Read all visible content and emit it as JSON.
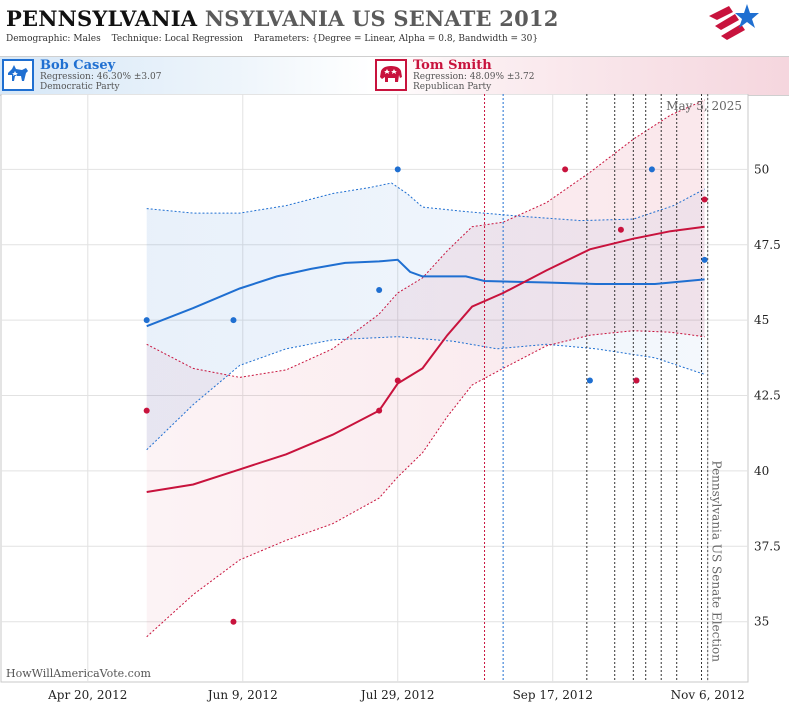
{
  "header": {
    "title_main": "PENNSYLVANIA",
    "title_sub": "NSYLVANIA US SENATE 2012",
    "demographic_label": "Demographic:",
    "demographic_value": "Males",
    "technique_label": "Technique:",
    "technique_value": "Local Regression",
    "parameters_label": "Parameters:",
    "parameters_value": "{Degree = Linear, Alpha = 0.8, Bandwidth = 30}"
  },
  "logo": {
    "icon": "star-flag-logo-icon",
    "colors": [
      "#c8133d",
      "#1f6fd1"
    ]
  },
  "candidates": {
    "dem": {
      "name": "Bob Casey",
      "regression": "Regression: 46.30% ±3.07",
      "party": "Democratic Party",
      "color": "#1f6fd1",
      "icon": "donkey-icon"
    },
    "rep": {
      "name": "Tom Smith",
      "regression": "Regression: 48.09% ±3.72",
      "party": "Republican Party",
      "color": "#c8133d",
      "icon": "elephant-icon"
    }
  },
  "chart_data": {
    "type": "scatter",
    "title": "",
    "xlabel": "",
    "ylabel": "",
    "x_tick_labels": [
      "Apr 20, 2012",
      "Jun 9, 2012",
      "Jul 29, 2012",
      "Sep 17, 2012",
      "Nov 6, 2012"
    ],
    "x_tick_dates": [
      "2012-04-20",
      "2012-06-09",
      "2012-07-29",
      "2012-09-17",
      "2012-11-06"
    ],
    "xlim": [
      "2012-03-23",
      "2012-11-19"
    ],
    "y_ticks": [
      35,
      37.5,
      40,
      42.5,
      45,
      47.5,
      50
    ],
    "ylim": [
      33,
      52.5
    ],
    "grid": true,
    "annotation_date": "May 5, 2025",
    "event_label": "Pennsylvania US Senate Election",
    "event_date": "2012-11-06",
    "poll_lines": [
      {
        "date": "2012-08-26",
        "color": "#c8133d"
      },
      {
        "date": "2012-09-01",
        "color": "#1f6fd1"
      },
      {
        "date": "2012-09-28",
        "color": "#333333"
      },
      {
        "date": "2012-10-07",
        "color": "#333333"
      },
      {
        "date": "2012-10-13",
        "color": "#333333"
      },
      {
        "date": "2012-10-17",
        "color": "#333333"
      },
      {
        "date": "2012-10-22",
        "color": "#333333"
      },
      {
        "date": "2012-10-27",
        "color": "#333333"
      },
      {
        "date": "2012-11-04",
        "color": "#333333"
      }
    ],
    "series": [
      {
        "party": "dem",
        "color": "#1f6fd1",
        "points": [
          [
            "2012-05-09",
            45
          ],
          [
            "2012-06-06",
            45
          ],
          [
            "2012-07-23",
            46
          ],
          [
            "2012-07-29",
            50
          ],
          [
            "2012-09-29",
            43
          ],
          [
            "2012-10-14",
            43
          ],
          [
            "2012-10-19",
            50
          ],
          [
            "2012-11-05",
            47
          ]
        ],
        "trend": [
          [
            "2012-05-09",
            44.8
          ],
          [
            "2012-05-24",
            45.4
          ],
          [
            "2012-06-08",
            46.05
          ],
          [
            "2012-06-20",
            46.45
          ],
          [
            "2012-07-01",
            46.7
          ],
          [
            "2012-07-12",
            46.9
          ],
          [
            "2012-07-23",
            46.95
          ],
          [
            "2012-07-29",
            47.0
          ],
          [
            "2012-08-02",
            46.6
          ],
          [
            "2012-08-06",
            46.45
          ],
          [
            "2012-08-20",
            46.45
          ],
          [
            "2012-08-26",
            46.3
          ],
          [
            "2012-09-15",
            46.25
          ],
          [
            "2012-10-01",
            46.2
          ],
          [
            "2012-10-20",
            46.2
          ],
          [
            "2012-11-05",
            46.35
          ]
        ],
        "upper": [
          [
            "2012-05-09",
            48.7
          ],
          [
            "2012-05-24",
            48.55
          ],
          [
            "2012-06-08",
            48.55
          ],
          [
            "2012-06-23",
            48.8
          ],
          [
            "2012-07-08",
            49.2
          ],
          [
            "2012-07-20",
            49.4
          ],
          [
            "2012-07-27",
            49.55
          ],
          [
            "2012-08-01",
            49.2
          ],
          [
            "2012-08-06",
            48.75
          ],
          [
            "2012-08-20",
            48.6
          ],
          [
            "2012-09-06",
            48.45
          ],
          [
            "2012-09-26",
            48.3
          ],
          [
            "2012-10-13",
            48.35
          ],
          [
            "2012-10-26",
            48.8
          ],
          [
            "2012-11-05",
            49.35
          ]
        ],
        "lower": [
          [
            "2012-05-09",
            40.7
          ],
          [
            "2012-05-24",
            42.2
          ],
          [
            "2012-06-08",
            43.5
          ],
          [
            "2012-06-23",
            44.05
          ],
          [
            "2012-07-08",
            44.35
          ],
          [
            "2012-07-29",
            44.45
          ],
          [
            "2012-08-16",
            44.3
          ],
          [
            "2012-08-30",
            44.05
          ],
          [
            "2012-09-15",
            44.2
          ],
          [
            "2012-10-01",
            44.05
          ],
          [
            "2012-10-20",
            43.75
          ],
          [
            "2012-11-05",
            43.2
          ]
        ]
      },
      {
        "party": "rep",
        "color": "#c8133d",
        "points": [
          [
            "2012-05-09",
            42
          ],
          [
            "2012-06-06",
            35
          ],
          [
            "2012-07-23",
            42
          ],
          [
            "2012-07-29",
            43
          ],
          [
            "2012-09-21",
            50
          ],
          [
            "2012-10-09",
            48
          ],
          [
            "2012-10-14",
            43
          ],
          [
            "2012-11-05",
            49
          ]
        ],
        "trend": [
          [
            "2012-05-09",
            39.3
          ],
          [
            "2012-05-24",
            39.55
          ],
          [
            "2012-06-08",
            40.05
          ],
          [
            "2012-06-23",
            40.55
          ],
          [
            "2012-07-08",
            41.2
          ],
          [
            "2012-07-23",
            42.0
          ],
          [
            "2012-07-29",
            42.9
          ],
          [
            "2012-08-06",
            43.4
          ],
          [
            "2012-08-14",
            44.5
          ],
          [
            "2012-08-22",
            45.45
          ],
          [
            "2012-09-01",
            45.9
          ],
          [
            "2012-09-15",
            46.65
          ],
          [
            "2012-09-29",
            47.35
          ],
          [
            "2012-10-13",
            47.7
          ],
          [
            "2012-10-25",
            47.95
          ],
          [
            "2012-11-05",
            48.1
          ]
        ],
        "upper": [
          [
            "2012-05-09",
            44.2
          ],
          [
            "2012-05-24",
            43.4
          ],
          [
            "2012-06-08",
            43.1
          ],
          [
            "2012-06-23",
            43.35
          ],
          [
            "2012-07-08",
            44.05
          ],
          [
            "2012-07-23",
            45.2
          ],
          [
            "2012-07-29",
            45.9
          ],
          [
            "2012-08-06",
            46.4
          ],
          [
            "2012-08-14",
            47.3
          ],
          [
            "2012-08-22",
            48.1
          ],
          [
            "2012-09-01",
            48.25
          ],
          [
            "2012-09-15",
            48.9
          ],
          [
            "2012-09-29",
            49.9
          ],
          [
            "2012-10-13",
            51.0
          ],
          [
            "2012-10-25",
            51.8
          ],
          [
            "2012-11-05",
            52.3
          ]
        ],
        "lower": [
          [
            "2012-05-09",
            34.5
          ],
          [
            "2012-05-24",
            35.9
          ],
          [
            "2012-06-08",
            37.05
          ],
          [
            "2012-06-23",
            37.7
          ],
          [
            "2012-07-08",
            38.25
          ],
          [
            "2012-07-23",
            39.1
          ],
          [
            "2012-07-29",
            39.8
          ],
          [
            "2012-08-06",
            40.6
          ],
          [
            "2012-08-14",
            41.8
          ],
          [
            "2012-08-22",
            42.85
          ],
          [
            "2012-09-01",
            43.4
          ],
          [
            "2012-09-15",
            44.15
          ],
          [
            "2012-09-29",
            44.5
          ],
          [
            "2012-10-13",
            44.65
          ],
          [
            "2012-10-25",
            44.6
          ],
          [
            "2012-11-05",
            44.45
          ]
        ]
      }
    ]
  },
  "footer": {
    "watermark": "HowWillAmericaVote.com"
  }
}
